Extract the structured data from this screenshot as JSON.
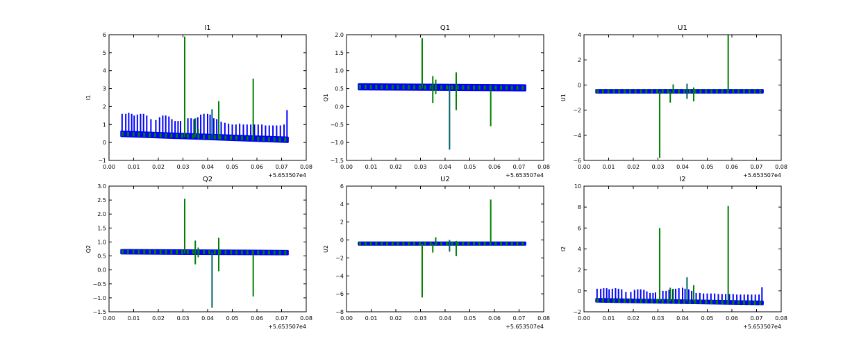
{
  "colors": {
    "blue": "#0000ff",
    "green": "#008000",
    "overlap": "#006666",
    "background": "#ffffff"
  },
  "chart_data": [
    {
      "type": "line",
      "title": "I1",
      "ylabel": "I1",
      "xlim": [
        0,
        0.08
      ],
      "ylim": [
        -1,
        6
      ],
      "xticks": [
        "0.00",
        "0.01",
        "0.02",
        "0.03",
        "0.04",
        "0.05",
        "0.06",
        "0.07",
        "0.08"
      ],
      "yticks": [
        -1,
        0,
        1,
        2,
        3,
        4,
        5,
        6
      ],
      "x_offset_label": "+5.653507e4",
      "baseline": {
        "x": [
          0.005,
          0.0725
        ],
        "y": [
          0.48,
          0.15
        ],
        "spread": 0.12
      },
      "blue_spikes": [
        [
          0.0053,
          1.6
        ],
        [
          0.0068,
          1.6
        ],
        [
          0.008,
          1.65
        ],
        [
          0.0092,
          1.6
        ],
        [
          0.0102,
          1.5
        ],
        [
          0.0115,
          1.55
        ],
        [
          0.0128,
          1.6
        ],
        [
          0.014,
          1.6
        ],
        [
          0.0153,
          1.5
        ],
        [
          0.017,
          1.3
        ],
        [
          0.019,
          1.25
        ],
        [
          0.0205,
          1.4
        ],
        [
          0.0218,
          1.5
        ],
        [
          0.023,
          1.5
        ],
        [
          0.0243,
          1.45
        ],
        [
          0.0255,
          1.3
        ],
        [
          0.0268,
          1.2
        ],
        [
          0.028,
          1.2
        ],
        [
          0.029,
          1.2
        ],
        [
          0.032,
          1.35
        ],
        [
          0.0333,
          1.35
        ],
        [
          0.0345,
          1.3
        ],
        [
          0.036,
          1.4
        ],
        [
          0.0372,
          1.55
        ],
        [
          0.0385,
          1.6
        ],
        [
          0.04,
          1.6
        ],
        [
          0.041,
          1.55
        ],
        [
          0.0425,
          1.35
        ],
        [
          0.0437,
          1.3
        ],
        [
          0.0455,
          1.15
        ],
        [
          0.047,
          1.1
        ],
        [
          0.0485,
          1.05
        ],
        [
          0.05,
          1.0
        ],
        [
          0.0515,
          1.0
        ],
        [
          0.053,
          1.05
        ],
        [
          0.0545,
          1.0
        ],
        [
          0.056,
          1.0
        ],
        [
          0.0575,
          1.0
        ],
        [
          0.059,
          1.0
        ],
        [
          0.0605,
          1.0
        ],
        [
          0.062,
          1.0
        ],
        [
          0.0635,
          0.95
        ],
        [
          0.065,
          0.95
        ],
        [
          0.0665,
          0.95
        ],
        [
          0.068,
          0.95
        ],
        [
          0.0695,
          0.95
        ],
        [
          0.071,
          1.0
        ],
        [
          0.0722,
          1.8
        ]
      ],
      "green_spikes": [
        [
          0.0307,
          0.3,
          5.9
        ],
        [
          0.035,
          0.3,
          1.35
        ],
        [
          0.0362,
          0.3,
          0.75
        ],
        [
          0.0418,
          0.2,
          1.85
        ],
        [
          0.0445,
          0.2,
          2.3
        ],
        [
          0.0585,
          0.2,
          3.55
        ]
      ]
    },
    {
      "type": "line",
      "title": "Q1",
      "ylabel": "Q1",
      "xlim": [
        0,
        0.08
      ],
      "ylim": [
        -1.5,
        2
      ],
      "xticks": [
        "0.00",
        "0.01",
        "0.02",
        "0.03",
        "0.04",
        "0.05",
        "0.06",
        "0.07",
        "0.08"
      ],
      "yticks": [
        "-1.5",
        "-1.0",
        "-0.5",
        "0.0",
        "0.5",
        "1.0",
        "1.5",
        "2.0"
      ],
      "x_offset_label": "+5.653507e4",
      "baseline": {
        "x": [
          0.005,
          0.0725
        ],
        "y": [
          0.55,
          0.52
        ],
        "spread": 0.07
      },
      "blue_spikes": [],
      "green_spikes": [
        [
          0.0307,
          0.5,
          1.9
        ],
        [
          0.035,
          0.1,
          0.85
        ],
        [
          0.0362,
          0.35,
          0.75
        ],
        [
          0.0418,
          -1.2,
          0.6
        ],
        [
          0.0445,
          -0.1,
          0.95
        ],
        [
          0.0585,
          -0.55,
          0.6
        ]
      ]
    },
    {
      "type": "line",
      "title": "U1",
      "ylabel": "U1",
      "xlim": [
        0,
        0.08
      ],
      "ylim": [
        -6,
        4
      ],
      "xticks": [
        "0.00",
        "0.01",
        "0.02",
        "0.03",
        "0.04",
        "0.05",
        "0.06",
        "0.07",
        "0.08"
      ],
      "yticks": [
        -6,
        -4,
        -2,
        0,
        2,
        4
      ],
      "x_offset_label": "+5.653507e4",
      "baseline": {
        "x": [
          0.005,
          0.0725
        ],
        "y": [
          -0.5,
          -0.5
        ],
        "spread": 0.1
      },
      "blue_spikes": [],
      "green_spikes": [
        [
          0.0307,
          -5.8,
          -0.5
        ],
        [
          0.035,
          -1.4,
          -0.5
        ],
        [
          0.0362,
          -0.5,
          0.05
        ],
        [
          0.0418,
          -1.1,
          0.1
        ],
        [
          0.0445,
          -1.3,
          -0.2
        ],
        [
          0.0585,
          -0.5,
          4.0
        ]
      ]
    },
    {
      "type": "line",
      "title": "Q2",
      "ylabel": "Q2",
      "xlim": [
        0,
        0.08
      ],
      "ylim": [
        -1.5,
        3
      ],
      "xticks": [
        "0.00",
        "0.01",
        "0.02",
        "0.03",
        "0.04",
        "0.05",
        "0.06",
        "0.07",
        "0.08"
      ],
      "yticks": [
        "-1.5",
        "-1.0",
        "-0.5",
        "0.0",
        "0.5",
        "1.0",
        "1.5",
        "2.0",
        "2.5",
        "3.0"
      ],
      "x_offset_label": "+5.653507e4",
      "baseline": {
        "x": [
          0.005,
          0.0725
        ],
        "y": [
          0.65,
          0.62
        ],
        "spread": 0.06
      },
      "blue_spikes": [],
      "green_spikes": [
        [
          0.0307,
          0.6,
          2.55
        ],
        [
          0.035,
          0.2,
          1.05
        ],
        [
          0.0362,
          0.45,
          0.8
        ],
        [
          0.0418,
          -1.35,
          0.65
        ],
        [
          0.0445,
          -0.05,
          1.15
        ],
        [
          0.0585,
          -0.95,
          0.7
        ]
      ]
    },
    {
      "type": "line",
      "title": "U2",
      "ylabel": "U2",
      "xlim": [
        0,
        0.08
      ],
      "ylim": [
        -8,
        6
      ],
      "xticks": [
        "0.00",
        "0.01",
        "0.02",
        "0.03",
        "0.04",
        "0.05",
        "0.06",
        "0.07",
        "0.08"
      ],
      "yticks": [
        -8,
        -6,
        -4,
        -2,
        0,
        2,
        4,
        6
      ],
      "x_offset_label": "+5.653507e4",
      "baseline": {
        "x": [
          0.005,
          0.0725
        ],
        "y": [
          -0.4,
          -0.4
        ],
        "spread": 0.12
      },
      "blue_spikes": [],
      "green_spikes": [
        [
          0.0307,
          -6.4,
          -0.4
        ],
        [
          0.035,
          -1.4,
          -0.4
        ],
        [
          0.0362,
          -0.4,
          0.3
        ],
        [
          0.0418,
          -1.3,
          0.0
        ],
        [
          0.0445,
          -1.8,
          -0.1
        ],
        [
          0.0585,
          -0.4,
          4.5
        ]
      ]
    },
    {
      "type": "line",
      "title": "I2",
      "ylabel": "I2",
      "xlim": [
        0,
        0.08
      ],
      "ylim": [
        -2,
        10
      ],
      "xticks": [
        "0.00",
        "0.01",
        "0.02",
        "0.03",
        "0.04",
        "0.05",
        "0.06",
        "0.07",
        "0.08"
      ],
      "yticks": [
        -2,
        0,
        2,
        4,
        6,
        8,
        10
      ],
      "x_offset_label": "+5.653507e4",
      "baseline": {
        "x": [
          0.005,
          0.0725
        ],
        "y": [
          -0.9,
          -1.15
        ],
        "spread": 0.12
      },
      "blue_spikes": [
        [
          0.0053,
          0.2
        ],
        [
          0.0068,
          0.2
        ],
        [
          0.008,
          0.25
        ],
        [
          0.0092,
          0.25
        ],
        [
          0.0102,
          0.15
        ],
        [
          0.0115,
          0.2
        ],
        [
          0.0128,
          0.25
        ],
        [
          0.014,
          0.2
        ],
        [
          0.0153,
          0.15
        ],
        [
          0.017,
          -0.1
        ],
        [
          0.019,
          -0.1
        ],
        [
          0.0205,
          0.1
        ],
        [
          0.0218,
          0.15
        ],
        [
          0.023,
          0.15
        ],
        [
          0.0243,
          0.1
        ],
        [
          0.0255,
          -0.05
        ],
        [
          0.0268,
          -0.2
        ],
        [
          0.028,
          -0.2
        ],
        [
          0.029,
          -0.15
        ],
        [
          0.032,
          0.0
        ],
        [
          0.0333,
          0.0
        ],
        [
          0.0345,
          0.1
        ],
        [
          0.036,
          0.15
        ],
        [
          0.0372,
          0.2
        ],
        [
          0.0385,
          0.25
        ],
        [
          0.04,
          0.3
        ],
        [
          0.041,
          0.2
        ],
        [
          0.0425,
          0.15
        ],
        [
          0.0437,
          0.0
        ],
        [
          0.0455,
          -0.2
        ],
        [
          0.047,
          -0.2
        ],
        [
          0.0485,
          -0.25
        ],
        [
          0.05,
          -0.25
        ],
        [
          0.0515,
          -0.25
        ],
        [
          0.053,
          -0.25
        ],
        [
          0.0545,
          -0.3
        ],
        [
          0.056,
          -0.3
        ],
        [
          0.0575,
          -0.3
        ],
        [
          0.059,
          -0.3
        ],
        [
          0.0605,
          -0.3
        ],
        [
          0.062,
          -0.35
        ],
        [
          0.0635,
          -0.35
        ],
        [
          0.065,
          -0.35
        ],
        [
          0.0665,
          -0.35
        ],
        [
          0.068,
          -0.35
        ],
        [
          0.0695,
          -0.35
        ],
        [
          0.071,
          -0.35
        ],
        [
          0.0722,
          0.35
        ]
      ],
      "green_spikes": [
        [
          0.0307,
          -1.0,
          6.0
        ],
        [
          0.035,
          -1.0,
          0.3
        ],
        [
          0.0362,
          -1.0,
          0.2
        ],
        [
          0.0418,
          -1.0,
          1.3
        ],
        [
          0.0445,
          -1.0,
          0.55
        ],
        [
          0.0585,
          -1.0,
          8.1
        ]
      ]
    }
  ]
}
